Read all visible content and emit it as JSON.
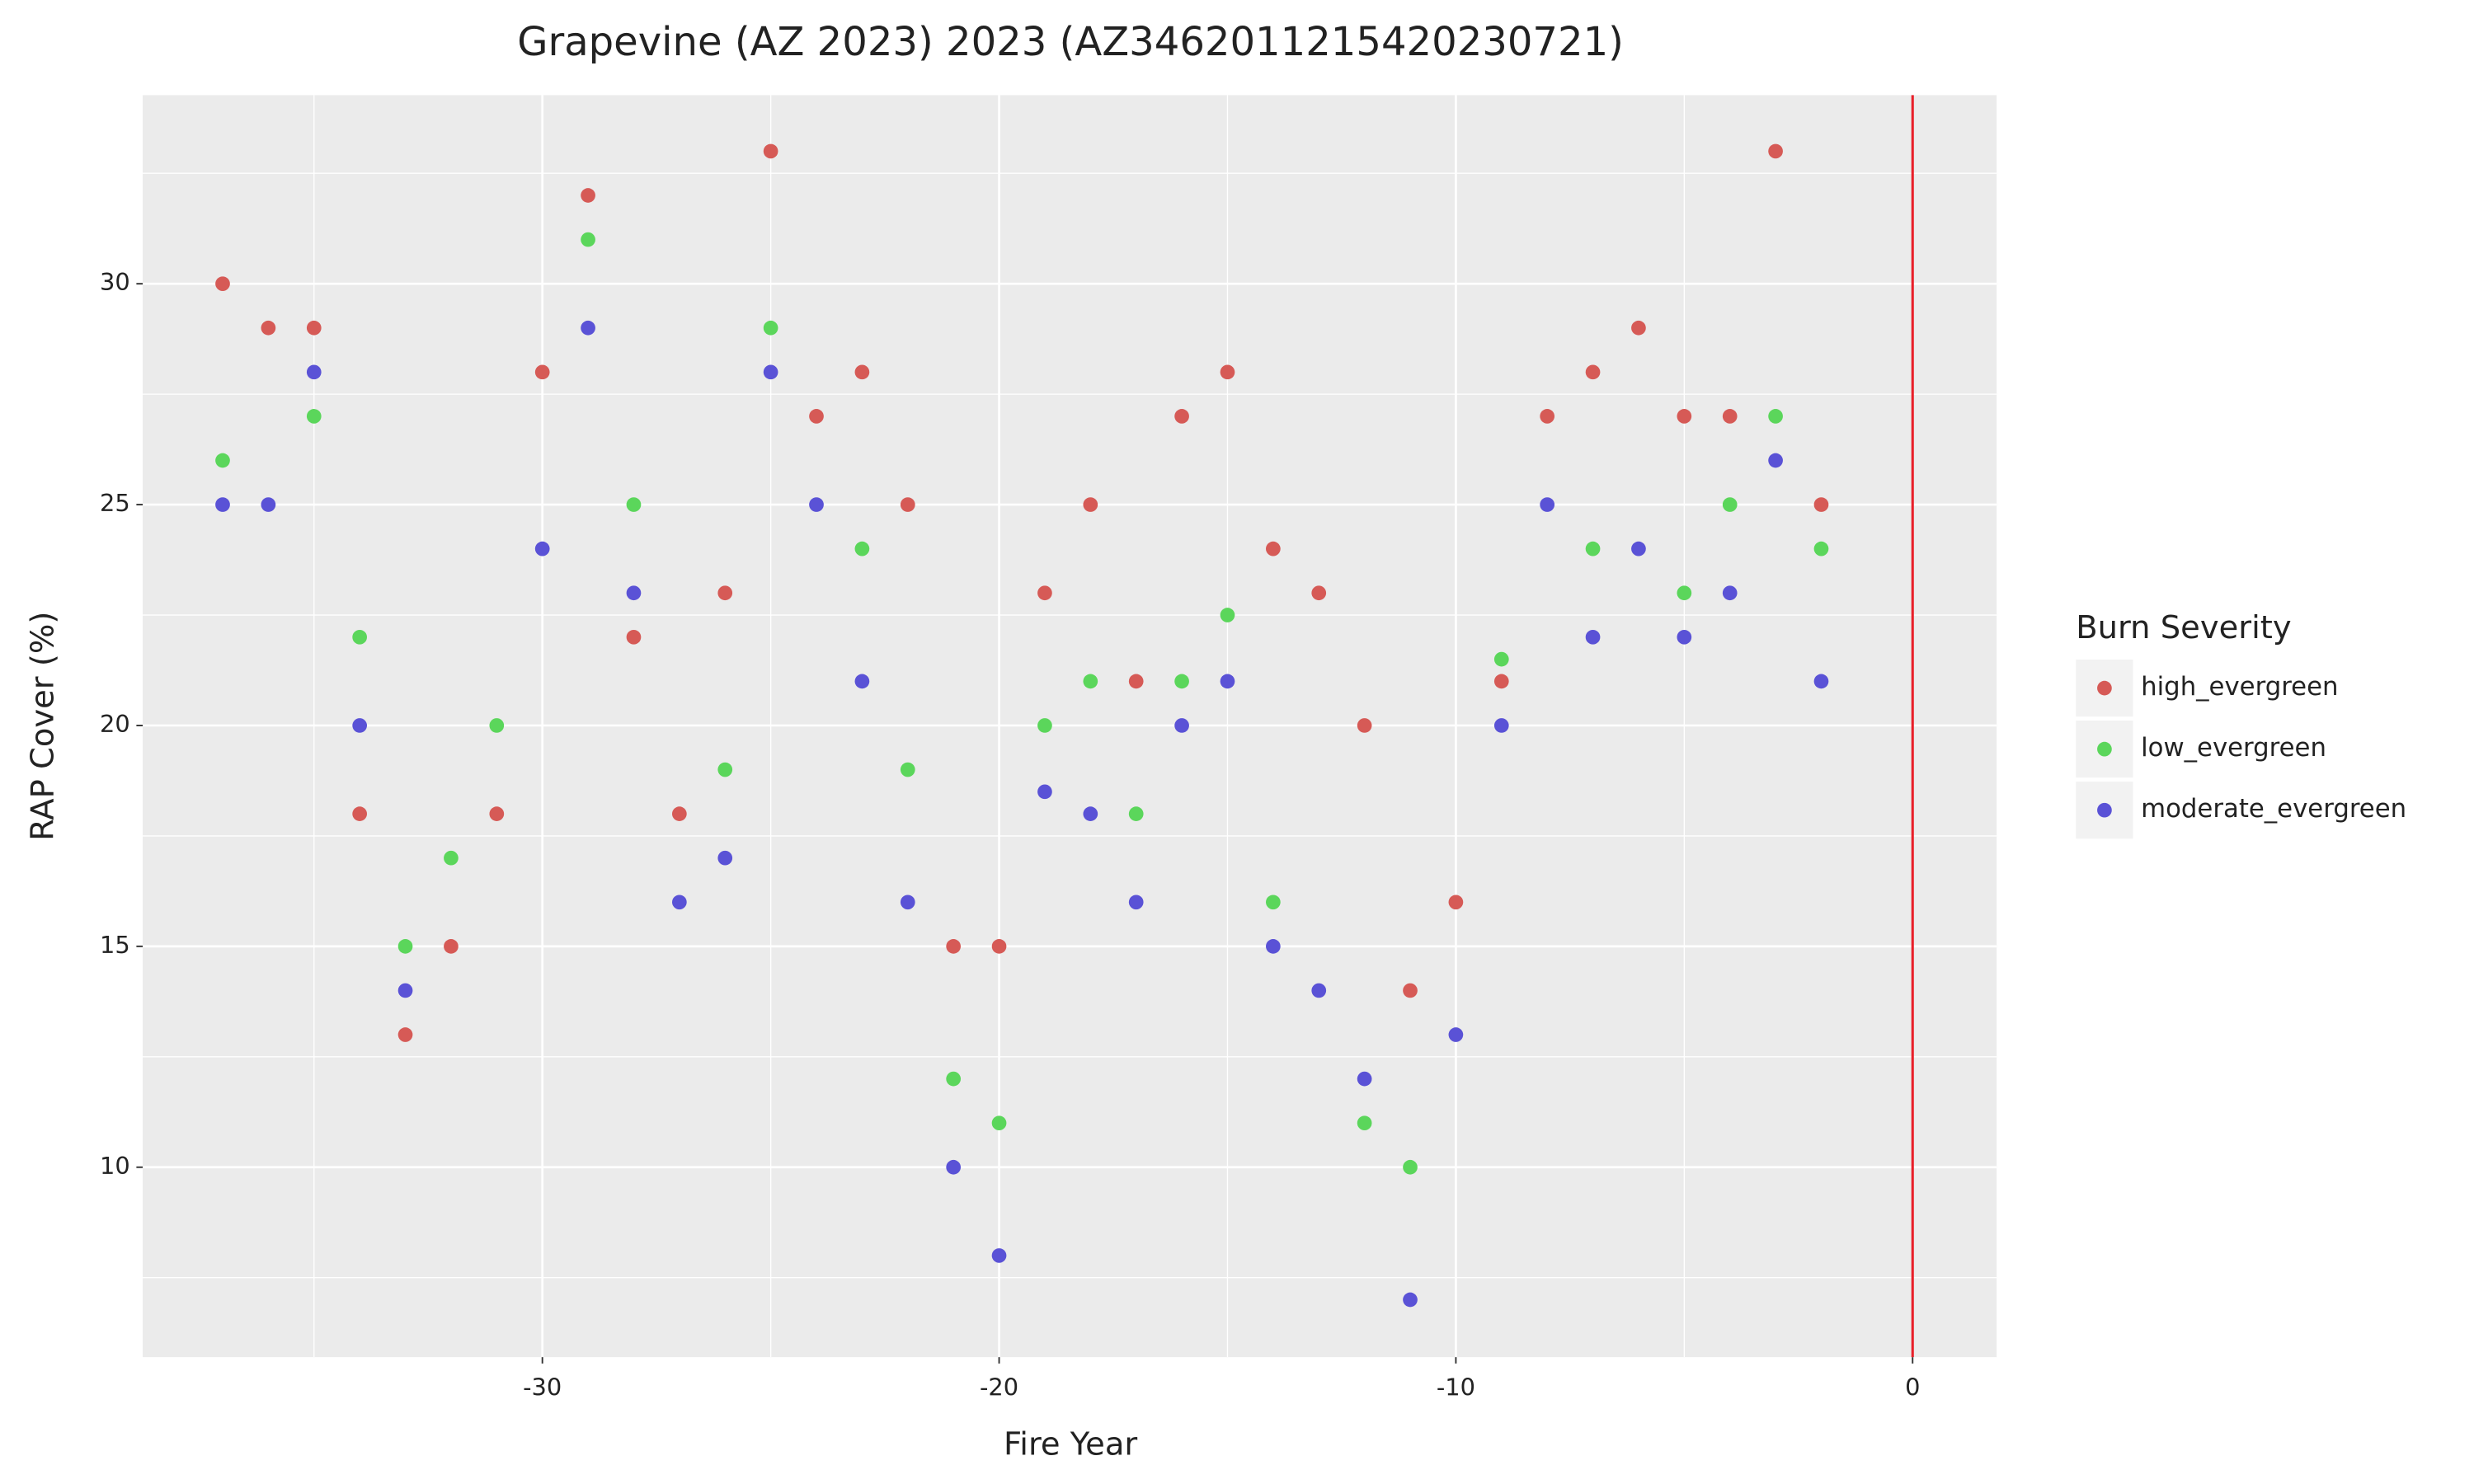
{
  "chart_data": {
    "type": "scatter",
    "title": "Grapevine (AZ 2023) 2023 (AZ3462011215420230721)",
    "x_label": "Fire Year",
    "y_label": "RAP Cover (%)",
    "legend_title": "Burn Severity",
    "legend_position": "right",
    "grid": true,
    "vline": 0,
    "vline_color": "#e8202a",
    "xlim": [
      -38.75,
      1.84
    ],
    "ylim": [
      5.7,
      34.27
    ],
    "xticks": [
      -30,
      -20,
      -10,
      0
    ],
    "yticks": [
      10,
      15,
      20,
      25,
      30
    ],
    "x": [
      -37,
      -36,
      -35,
      -34,
      -33,
      -32,
      -31,
      -30,
      -29,
      -28,
      -27,
      -26,
      -25,
      -24,
      -23,
      -22,
      -21,
      -20,
      -19,
      -18,
      -17,
      -16,
      -15,
      -14,
      -13,
      -12,
      -11,
      -10,
      -9,
      -8,
      -7,
      -6,
      -5,
      -4,
      -3,
      -2
    ],
    "series": [
      {
        "name": "high_evergreen",
        "color": "#d65a56",
        "values": [
          30,
          29,
          29,
          18,
          13,
          15,
          18,
          28,
          32,
          22,
          18,
          23,
          33,
          27,
          28,
          25,
          15,
          15,
          23,
          25,
          21,
          27,
          28,
          24,
          23,
          20,
          14,
          16,
          21,
          27,
          28,
          29,
          27,
          27,
          33,
          25
        ]
      },
      {
        "name": "low_evergreen",
        "color": "#5bd65b",
        "values": [
          26,
          null,
          27,
          22,
          15,
          17,
          20,
          null,
          31,
          25,
          null,
          19,
          29,
          null,
          24,
          19,
          12,
          11,
          20,
          21,
          18,
          21,
          22.5,
          16,
          null,
          11,
          10,
          null,
          21.5,
          null,
          24,
          null,
          23,
          25,
          27,
          24
        ]
      },
      {
        "name": "moderate_evergreen",
        "color": "#5a52d6",
        "values": [
          25,
          25,
          28,
          20,
          14,
          null,
          null,
          24,
          29,
          23,
          16,
          17,
          28,
          25,
          21,
          16,
          10,
          8,
          18.5,
          18,
          16,
          20,
          21,
          15,
          14,
          12,
          7,
          13,
          20,
          25,
          22,
          24,
          22,
          23,
          26,
          21
        ]
      }
    ]
  }
}
